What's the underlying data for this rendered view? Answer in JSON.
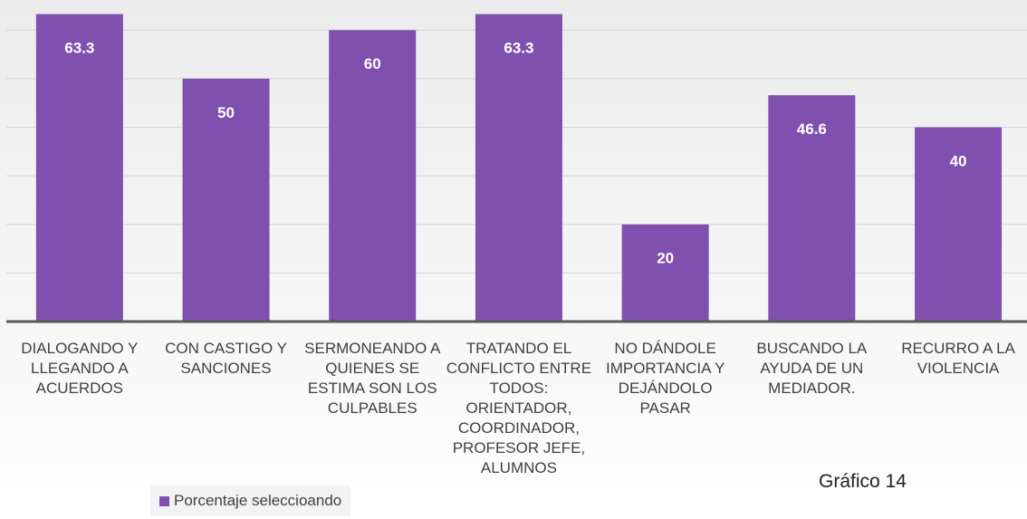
{
  "chart_data": {
    "type": "bar",
    "categories": [
      "DIALOGANDO Y LLEGANDO A ACUERDOS",
      "CON CASTIGO Y SANCIONES",
      "SERMONEANDO A QUIENES SE ESTIMA SON LOS CULPABLES",
      "TRATANDO EL CONFLICTO ENTRE TODOS: ORIENTADOR, COORDINADOR, PROFESOR JEFE, ALUMNOS",
      "NO DÁNDOLE IMPORTANCIA Y DEJÁNDOLO PASAR",
      "BUSCANDO LA AYUDA DE UN MEDIADOR.",
      "RECURRO A LA VIOLENCIA"
    ],
    "series": [
      {
        "name": "Porcentaje seleccioando",
        "color": "#8050ae",
        "values": [
          63.3,
          50,
          60,
          63.3,
          20,
          46.6,
          40
        ]
      }
    ],
    "ylim": [
      0,
      66.2
    ],
    "yticks": [
      0,
      10,
      20,
      30,
      40,
      50,
      60
    ],
    "grid": true,
    "annotation": "Gráfico 14"
  }
}
